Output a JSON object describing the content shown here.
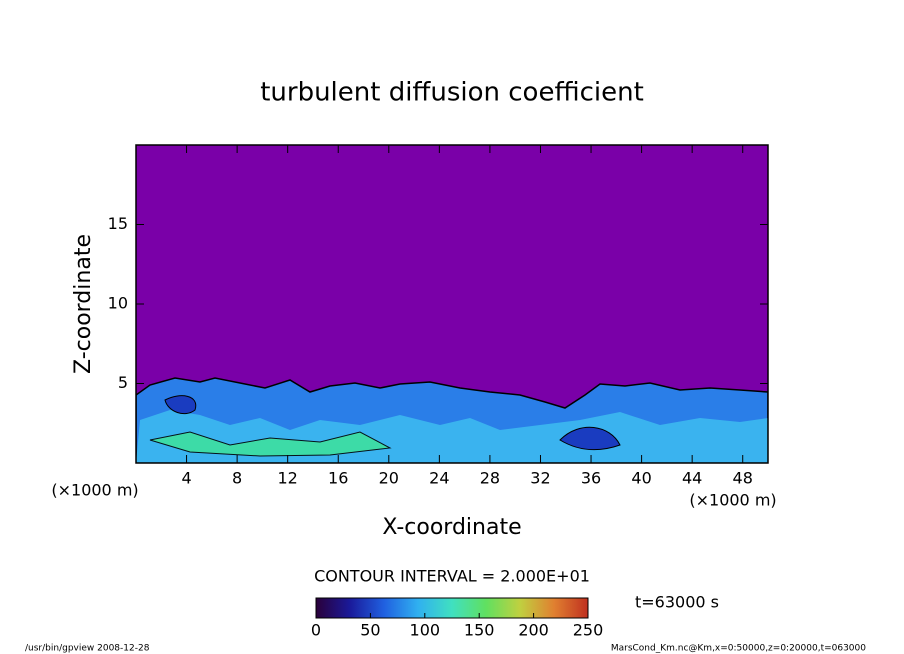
{
  "chart_data": {
    "type": "contour",
    "title": "turbulent diffusion coefficient",
    "xlabel": "X-coordinate",
    "ylabel": "Z-coordinate",
    "x_unit": "(×1000 m)",
    "xlim": [
      0,
      50
    ],
    "ylim": [
      0,
      20
    ],
    "xticks": [
      4,
      8,
      12,
      16,
      20,
      24,
      28,
      32,
      36,
      40,
      44,
      48
    ],
    "yticks": [
      5,
      10,
      15
    ],
    "background_color": "#7a00a8",
    "contour_interval": "CONTOUR INTERVAL = 2.000E+01",
    "time": "t=63000 s",
    "colorbar": {
      "lim": [
        0,
        250
      ],
      "ticks": [
        0,
        50,
        100,
        150,
        200,
        250
      ],
      "colors": [
        "#2a003a",
        "#1a1a9a",
        "#2060e0",
        "#30b0f0",
        "#40e0c0",
        "#60e060",
        "#c0d040",
        "#e08030",
        "#c03020"
      ]
    },
    "footer_left": "/usr/bin/gpview   2008-12-28",
    "footer_right": "MarsCond_Km.nc@Km,x=0:50000,z=0:20000,t=063000"
  }
}
